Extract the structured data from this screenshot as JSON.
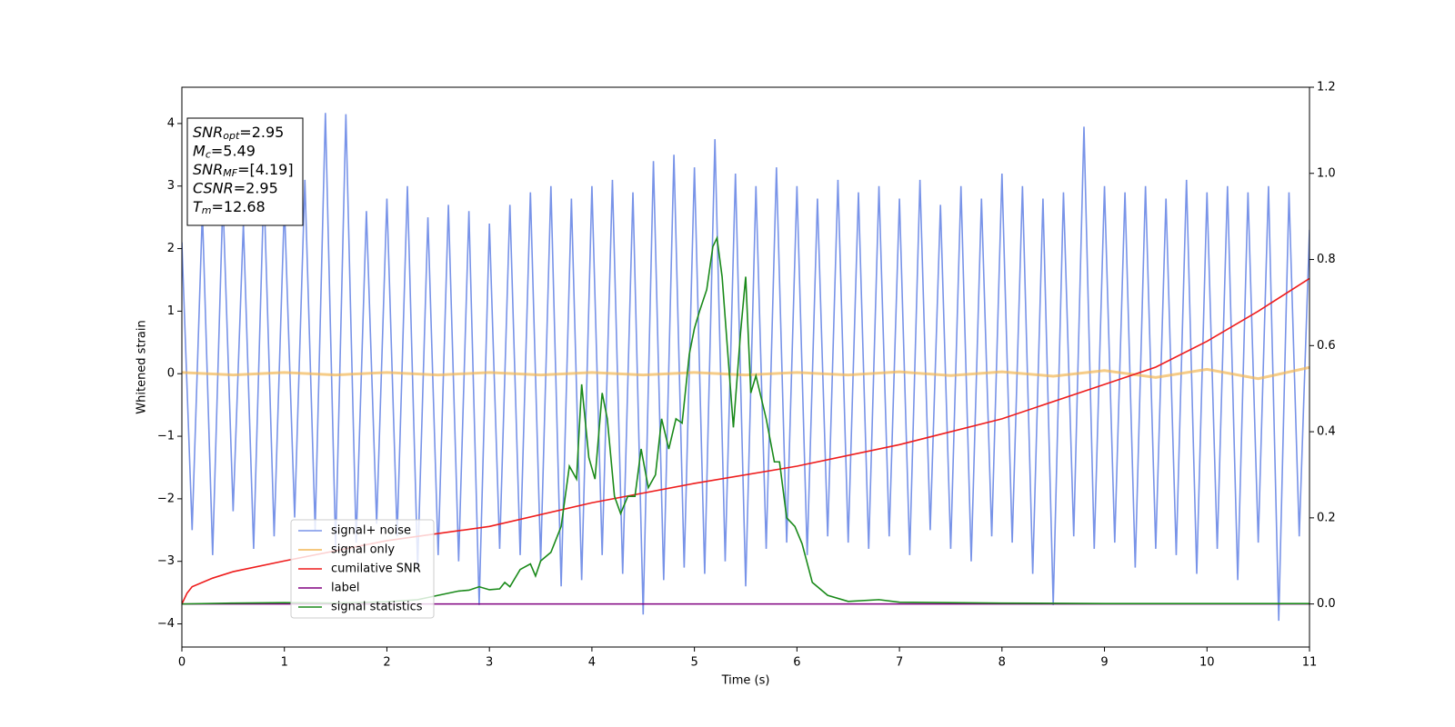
{
  "chart_data": {
    "type": "line",
    "xlabel": "Time (s)",
    "ylabel": "Whitened strain",
    "xlim": [
      0,
      11
    ],
    "ylim": [
      -4.37,
      4.58
    ],
    "y2lim": [
      -0.1,
      1.2
    ],
    "xticks": [
      0,
      1,
      2,
      3,
      4,
      5,
      6,
      7,
      8,
      9,
      10,
      11
    ],
    "yticks": [
      {
        "value": -4,
        "label": "−4"
      },
      {
        "value": -3,
        "label": "−3"
      },
      {
        "value": -2,
        "label": "−2"
      },
      {
        "value": -1,
        "label": "−1"
      },
      0,
      1,
      2,
      3,
      4
    ],
    "y2ticks": [
      {
        "value": 0,
        "label": "0.0"
      },
      {
        "value": 0.2,
        "label": "0.2"
      },
      {
        "value": 0.4,
        "label": "0.4"
      },
      {
        "value": 0.6,
        "label": "0.6"
      },
      {
        "value": 0.8,
        "label": "0.8"
      },
      {
        "value": 1,
        "label": "1.0"
      },
      {
        "value": 1.2,
        "label": "1.2"
      }
    ],
    "legend": "lower left",
    "annotation": [
      {
        "name": "SNR",
        "sub": "opt",
        "text": "=2.95"
      },
      {
        "name": "M",
        "sub": "c",
        "text": "=5.49"
      },
      {
        "name": "SNR",
        "sub": "MF",
        "text": "=[4.19]"
      },
      {
        "name": "CSNR",
        "text": "=2.95"
      },
      {
        "name": "T",
        "sub": "m",
        "text": "=12.68"
      }
    ],
    "series": [
      {
        "name": "signal+ noise",
        "color": "#7893e8",
        "x": [
          0,
          0.1,
          0.2,
          0.3,
          0.4,
          0.5,
          0.6,
          0.7,
          0.8,
          0.9,
          1,
          1.1,
          1.2,
          1.3,
          1.4,
          1.5,
          1.6,
          1.7,
          1.8,
          1.9,
          2,
          2.1,
          2.2,
          2.3,
          2.4,
          2.5,
          2.6,
          2.7,
          2.8,
          2.9,
          3,
          3.1,
          3.2,
          3.3,
          3.4,
          3.5,
          3.6,
          3.7,
          3.8,
          3.9,
          4,
          4.1,
          4.2,
          4.3,
          4.4,
          4.5,
          4.6,
          4.7,
          4.8,
          4.9,
          5,
          5.1,
          5.2,
          5.3,
          5.4,
          5.5,
          5.6,
          5.7,
          5.8,
          5.9,
          6,
          6.1,
          6.2,
          6.3,
          6.4,
          6.5,
          6.6,
          6.7,
          6.8,
          6.9,
          7,
          7.1,
          7.2,
          7.3,
          7.4,
          7.5,
          7.6,
          7.7,
          7.8,
          7.9,
          8,
          8.1,
          8.2,
          8.3,
          8.4,
          8.5,
          8.6,
          8.7,
          8.8,
          8.9,
          9,
          9.1,
          9.2,
          9.3,
          9.4,
          9.5,
          9.6,
          9.7,
          9.8,
          9.9,
          10,
          10.1,
          10.2,
          10.3,
          10.4,
          10.5,
          10.6,
          10.7,
          10.8,
          10.9,
          11
        ],
        "values": [
          2.1,
          -2.5,
          2.6,
          -2.9,
          2.8,
          -2.2,
          2.4,
          -2.8,
          3.0,
          -2.6,
          2.7,
          -2.3,
          3.1,
          -2.5,
          4.17,
          -2.8,
          4.15,
          -2.7,
          2.6,
          -2.4,
          2.8,
          -2.6,
          3.0,
          -3.1,
          2.5,
          -2.9,
          2.7,
          -3.0,
          2.6,
          -3.7,
          2.4,
          -2.8,
          2.7,
          -2.9,
          2.9,
          -3.0,
          3.0,
          -3.4,
          2.8,
          -3.3,
          3.0,
          -2.9,
          3.1,
          -3.2,
          2.9,
          -3.85,
          3.4,
          -3.3,
          3.5,
          -3.1,
          3.3,
          -3.2,
          3.75,
          -3.0,
          3.2,
          -3.4,
          3.0,
          -2.8,
          3.3,
          -2.7,
          3.0,
          -2.9,
          2.8,
          -2.6,
          3.1,
          -2.7,
          2.9,
          -2.8,
          3.0,
          -2.6,
          2.8,
          -2.9,
          3.1,
          -2.5,
          2.7,
          -2.8,
          3.0,
          -3.0,
          2.8,
          -2.6,
          3.2,
          -2.7,
          3.0,
          -3.2,
          2.8,
          -3.7,
          2.9,
          -2.6,
          3.95,
          -2.8,
          3.0,
          -2.7,
          2.9,
          -3.1,
          3.0,
          -2.8,
          2.8,
          -2.9,
          3.1,
          -3.2,
          2.9,
          -2.8,
          3.0,
          -3.3,
          2.9,
          -2.7,
          3.0,
          -3.95,
          2.9,
          -2.6,
          2.3
        ]
      },
      {
        "name": "signal only",
        "color": "#f2b654",
        "x": [
          0,
          0.5,
          1,
          1.5,
          2,
          2.5,
          3,
          3.5,
          4,
          4.5,
          5,
          5.5,
          6,
          6.5,
          7,
          7.5,
          8,
          8.5,
          9,
          9.5,
          10,
          10.5,
          11
        ],
        "values": [
          0.02,
          -0.02,
          0.02,
          -0.02,
          0.02,
          -0.02,
          0.02,
          -0.02,
          0.02,
          -0.02,
          0.02,
          -0.02,
          0.02,
          -0.02,
          0.03,
          -0.03,
          0.03,
          -0.04,
          0.05,
          -0.06,
          0.07,
          -0.08,
          0.1
        ]
      },
      {
        "name": "cumilative SNR",
        "color": "#ee1c1c",
        "axis": "y2",
        "x": [
          0,
          0.05,
          0.1,
          0.3,
          0.5,
          1,
          2,
          3,
          4,
          5,
          6,
          7,
          8,
          9,
          9.5,
          10,
          10.5,
          11
        ],
        "values": [
          0,
          0.025,
          0.04,
          0.06,
          0.075,
          0.1,
          0.147,
          0.18,
          0.235,
          0.28,
          0.32,
          0.37,
          0.43,
          0.51,
          0.55,
          0.61,
          0.68,
          0.756
        ]
      },
      {
        "name": "label",
        "color": "#800080",
        "axis": "y2",
        "x": [
          0,
          11
        ],
        "values": [
          0,
          0
        ]
      },
      {
        "name": "signal statistics",
        "color": "#1a8a1a",
        "axis": "y2",
        "x": [
          0,
          0.5,
          1,
          1.5,
          2,
          2.3,
          2.5,
          2.6,
          2.7,
          2.8,
          2.9,
          3,
          3.1,
          3.15,
          3.2,
          3.3,
          3.4,
          3.45,
          3.5,
          3.6,
          3.7,
          3.78,
          3.85,
          3.9,
          3.97,
          4.03,
          4.1,
          4.15,
          4.22,
          4.28,
          4.35,
          4.42,
          4.48,
          4.55,
          4.62,
          4.68,
          4.75,
          4.82,
          4.88,
          4.95,
          5,
          5.05,
          5.12,
          5.18,
          5.22,
          5.27,
          5.32,
          5.38,
          5.45,
          5.5,
          5.55,
          5.6,
          5.7,
          5.78,
          5.83,
          5.9,
          5.98,
          6.05,
          6.15,
          6.3,
          6.5,
          6.8,
          7,
          8,
          9,
          10,
          11
        ],
        "values": [
          0,
          0.002,
          0.003,
          0.002,
          0.005,
          0.01,
          0.02,
          0.025,
          0.03,
          0.032,
          0.04,
          0.033,
          0.035,
          0.05,
          0.04,
          0.08,
          0.093,
          0.065,
          0.1,
          0.12,
          0.18,
          0.32,
          0.29,
          0.51,
          0.34,
          0.29,
          0.49,
          0.43,
          0.25,
          0.21,
          0.25,
          0.25,
          0.36,
          0.27,
          0.3,
          0.43,
          0.36,
          0.43,
          0.42,
          0.58,
          0.64,
          0.68,
          0.73,
          0.83,
          0.85,
          0.76,
          0.6,
          0.41,
          0.63,
          0.76,
          0.49,
          0.53,
          0.43,
          0.33,
          0.33,
          0.2,
          0.18,
          0.14,
          0.05,
          0.02,
          0.006,
          0.01,
          0.004,
          0.002,
          0.001,
          0.001,
          0.001
        ]
      }
    ]
  }
}
